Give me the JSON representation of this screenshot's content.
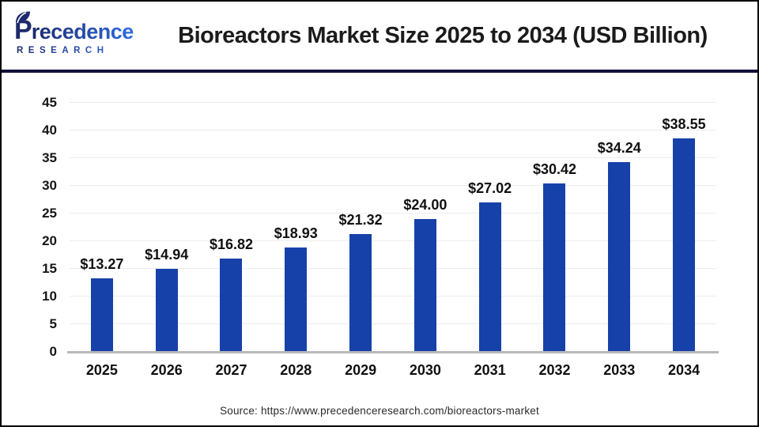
{
  "header": {
    "logo": {
      "name": "Precedence",
      "subtitle": "RESEARCH"
    },
    "title": "Bioreactors Market Size 2025 to 2034 (USD Billion)"
  },
  "chart_data": {
    "type": "bar",
    "title": "Bioreactors Market Size 2025 to 2034 (USD Billion)",
    "categories": [
      "2025",
      "2026",
      "2027",
      "2028",
      "2029",
      "2030",
      "2031",
      "2032",
      "2033",
      "2034"
    ],
    "values": [
      13.27,
      14.94,
      16.82,
      18.93,
      21.32,
      24.0,
      27.02,
      30.42,
      34.24,
      38.55
    ],
    "labels": [
      "$13.27",
      "$14.94",
      "$16.82",
      "$18.93",
      "$21.32",
      "$24.00",
      "$27.02",
      "$30.42",
      "$34.24",
      "$38.55"
    ],
    "xlabel": "",
    "ylabel": "",
    "ylim": [
      0,
      45
    ],
    "yticks": [
      0,
      5,
      10,
      15,
      20,
      25,
      30,
      35,
      40,
      45
    ],
    "grid": true,
    "legend": false,
    "bar_color": "#1641a8",
    "gridline_color": "#ececec",
    "axis_line_color": "#b9b9b9"
  },
  "footer": {
    "source": "Source: https://www.precedenceresearch.com/bioreactors-market"
  }
}
